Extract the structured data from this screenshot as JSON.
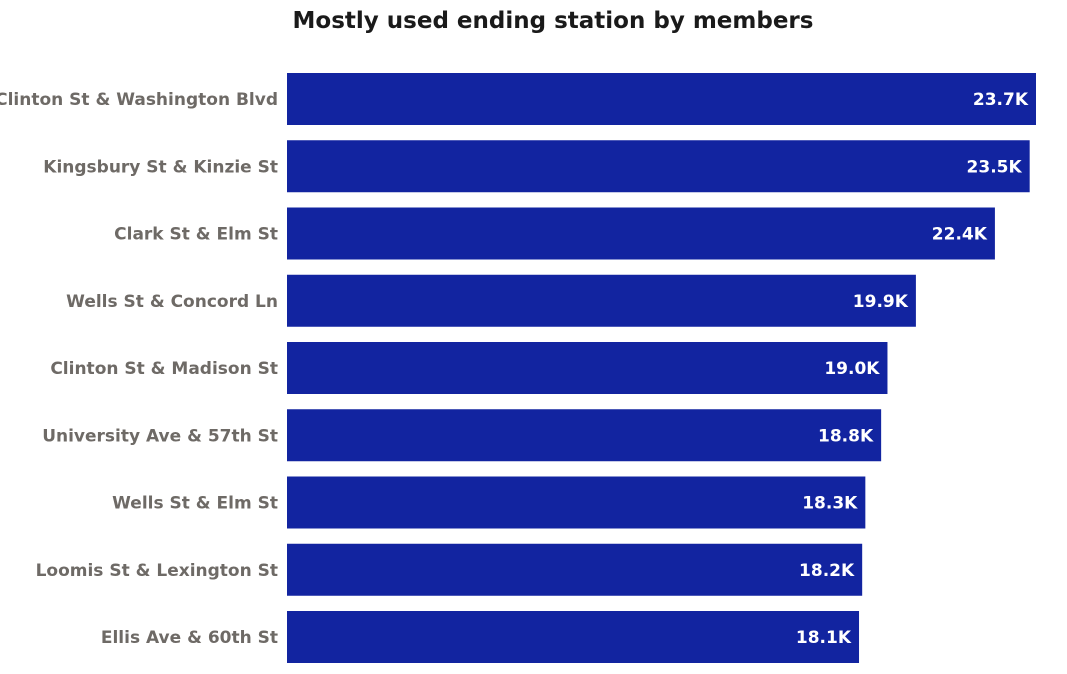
{
  "chart_data": {
    "type": "bar",
    "orientation": "horizontal",
    "title": "Mostly used ending station by members",
    "xlabel": "",
    "ylabel": "",
    "categories": [
      "Clinton St & Washington Blvd",
      "Kingsbury St & Kinzie St",
      "Clark St & Elm St",
      "Wells St & Concord Ln",
      "Clinton St & Madison St",
      "University Ave & 57th St",
      "Wells St & Elm St",
      "Loomis St & Lexington St",
      "Ellis Ave & 60th St"
    ],
    "values": [
      23700,
      23500,
      22400,
      19900,
      19000,
      18800,
      18300,
      18200,
      18100
    ],
    "value_labels": [
      "23.7K",
      "23.5K",
      "22.4K",
      "19.9K",
      "19.0K",
      "18.8K",
      "18.3K",
      "18.2K",
      "18.1K"
    ],
    "xlim": [
      0,
      23700
    ],
    "grid": false,
    "legend": "none",
    "bar_color": "#1224a0"
  }
}
